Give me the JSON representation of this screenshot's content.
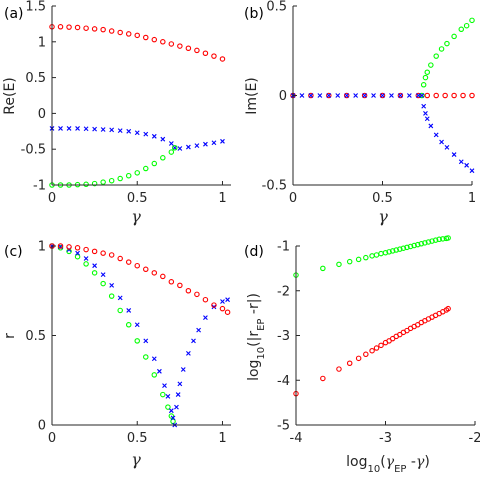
{
  "colors": {
    "red": "#ff0000",
    "green": "#00ff00",
    "blue": "#0000ff",
    "axis": "#262626"
  },
  "chart_data": [
    {
      "id": "a",
      "type": "scatter",
      "panel_label": "(a)",
      "xlabel": "γ",
      "ylabel": "Re(E)",
      "xlim": [
        0,
        1.05
      ],
      "ylim": [
        -1,
        1.5
      ],
      "xticks": [
        0,
        0.5,
        1
      ],
      "xtick_labels": [
        "0",
        "0.5",
        "1"
      ],
      "yticks": [
        -1,
        -0.5,
        0,
        0.5,
        1,
        1.5
      ],
      "ytick_labels": [
        "-1",
        "-0.5",
        "0",
        "0.5",
        "1",
        "1.5"
      ],
      "series": [
        {
          "color": "red",
          "marker": "o",
          "x": [
            0,
            0.05,
            0.1,
            0.15,
            0.2,
            0.25,
            0.3,
            0.35,
            0.4,
            0.45,
            0.5,
            0.55,
            0.6,
            0.65,
            0.7,
            0.75,
            0.8,
            0.85,
            0.9,
            0.95,
            1.0
          ],
          "y": [
            1.21,
            1.21,
            1.205,
            1.2,
            1.19,
            1.18,
            1.17,
            1.15,
            1.13,
            1.11,
            1.09,
            1.06,
            1.03,
            1.0,
            0.97,
            0.94,
            0.91,
            0.88,
            0.84,
            0.8,
            0.76
          ]
        },
        {
          "color": "blue",
          "marker": "x",
          "x": [
            0,
            0.05,
            0.1,
            0.15,
            0.2,
            0.25,
            0.3,
            0.35,
            0.4,
            0.45,
            0.5,
            0.55,
            0.6,
            0.65,
            0.7,
            0.72,
            0.75,
            0.8,
            0.85,
            0.9,
            0.95,
            1.0
          ],
          "y": [
            -0.21,
            -0.21,
            -0.21,
            -0.21,
            -0.215,
            -0.22,
            -0.225,
            -0.23,
            -0.24,
            -0.25,
            -0.27,
            -0.29,
            -0.32,
            -0.36,
            -0.42,
            -0.48,
            -0.49,
            -0.47,
            -0.45,
            -0.43,
            -0.41,
            -0.39
          ]
        },
        {
          "color": "green",
          "marker": "o",
          "x": [
            0,
            0.05,
            0.1,
            0.15,
            0.2,
            0.25,
            0.3,
            0.35,
            0.4,
            0.45,
            0.5,
            0.55,
            0.6,
            0.65,
            0.7,
            0.72
          ],
          "y": [
            -1.0,
            -1.0,
            -1.0,
            -0.995,
            -0.99,
            -0.98,
            -0.96,
            -0.94,
            -0.91,
            -0.87,
            -0.83,
            -0.77,
            -0.7,
            -0.62,
            -0.54,
            -0.48
          ]
        }
      ]
    },
    {
      "id": "b",
      "type": "scatter",
      "panel_label": "(b)",
      "xlabel": "γ",
      "ylabel": "Im(E)",
      "xlim": [
        0,
        1.0
      ],
      "ylim": [
        -0.5,
        0.5
      ],
      "xticks": [
        0,
        0.5,
        1
      ],
      "xtick_labels": [
        "0",
        "0.5",
        "1"
      ],
      "yticks": [
        -0.5,
        0,
        0.5
      ],
      "ytick_labels": [
        "-0.5",
        "0",
        "0.5"
      ],
      "series": [
        {
          "color": "red",
          "marker": "o",
          "x": [
            0,
            0.1,
            0.2,
            0.3,
            0.4,
            0.5,
            0.6,
            0.7,
            0.75,
            0.8,
            0.85,
            0.9,
            0.95,
            1.0
          ],
          "y": [
            0,
            0,
            0,
            0,
            0,
            0,
            0,
            0,
            0,
            0,
            0,
            0,
            0,
            0
          ]
        },
        {
          "color": "green",
          "marker": "o",
          "x": [
            0.72,
            0.73,
            0.74,
            0.75,
            0.77,
            0.8,
            0.83,
            0.86,
            0.9,
            0.94,
            0.97,
            1.0
          ],
          "y": [
            0.0,
            0.06,
            0.1,
            0.13,
            0.17,
            0.22,
            0.26,
            0.29,
            0.33,
            0.37,
            0.39,
            0.42
          ]
        },
        {
          "color": "blue",
          "marker": "x",
          "x": [
            0,
            0.05,
            0.1,
            0.15,
            0.2,
            0.25,
            0.3,
            0.35,
            0.4,
            0.45,
            0.5,
            0.55,
            0.6,
            0.65,
            0.7,
            0.72,
            0.73,
            0.74,
            0.75,
            0.77,
            0.8,
            0.83,
            0.86,
            0.9,
            0.94,
            0.97,
            1.0
          ],
          "y": [
            0,
            0,
            0,
            0,
            0,
            0,
            0,
            0,
            0,
            0,
            0,
            0,
            0,
            0,
            0,
            0.0,
            -0.06,
            -0.1,
            -0.13,
            -0.17,
            -0.22,
            -0.26,
            -0.29,
            -0.33,
            -0.37,
            -0.39,
            -0.42
          ]
        }
      ]
    },
    {
      "id": "c",
      "type": "scatter",
      "panel_label": "(c)",
      "xlabel": "γ",
      "ylabel": "r",
      "xlim": [
        0,
        1.05
      ],
      "ylim": [
        0,
        1
      ],
      "xticks": [
        0,
        0.5,
        1
      ],
      "xtick_labels": [
        "0",
        "0.5",
        "1"
      ],
      "yticks": [
        0,
        0.5,
        1
      ],
      "ytick_labels": [
        "0",
        "0.5",
        "1"
      ],
      "series": [
        {
          "color": "green",
          "marker": "o",
          "x": [
            0,
            0.05,
            0.1,
            0.15,
            0.2,
            0.25,
            0.3,
            0.35,
            0.4,
            0.45,
            0.5,
            0.55,
            0.6,
            0.65,
            0.68,
            0.7,
            0.71
          ],
          "y": [
            1.0,
            0.99,
            0.97,
            0.94,
            0.9,
            0.85,
            0.79,
            0.72,
            0.64,
            0.56,
            0.47,
            0.38,
            0.28,
            0.17,
            0.1,
            0.05,
            0.02
          ]
        },
        {
          "color": "blue",
          "marker": "x",
          "x": [
            0,
            0.05,
            0.1,
            0.15,
            0.2,
            0.25,
            0.3,
            0.35,
            0.4,
            0.45,
            0.5,
            0.55,
            0.6,
            0.63,
            0.66,
            0.68,
            0.7,
            0.71,
            0.72,
            0.73,
            0.74,
            0.75,
            0.77,
            0.8,
            0.83,
            0.86,
            0.9,
            0.95,
            1.0,
            1.03
          ],
          "y": [
            1.0,
            0.995,
            0.98,
            0.96,
            0.93,
            0.89,
            0.84,
            0.78,
            0.71,
            0.64,
            0.56,
            0.47,
            0.37,
            0.3,
            0.22,
            0.16,
            0.08,
            0.04,
            0.0,
            0.1,
            0.17,
            0.23,
            0.31,
            0.4,
            0.47,
            0.53,
            0.6,
            0.66,
            0.69,
            0.7
          ]
        },
        {
          "color": "red",
          "marker": "o",
          "x": [
            0,
            0.05,
            0.1,
            0.15,
            0.2,
            0.25,
            0.3,
            0.35,
            0.4,
            0.45,
            0.5,
            0.55,
            0.6,
            0.65,
            0.7,
            0.75,
            0.8,
            0.85,
            0.9,
            0.95,
            1.0,
            1.03
          ],
          "y": [
            1.0,
            1.0,
            0.995,
            0.99,
            0.98,
            0.97,
            0.96,
            0.95,
            0.93,
            0.91,
            0.89,
            0.87,
            0.85,
            0.83,
            0.8,
            0.78,
            0.75,
            0.73,
            0.7,
            0.67,
            0.65,
            0.63
          ]
        }
      ]
    },
    {
      "id": "d",
      "type": "scatter",
      "panel_label": "(d)",
      "xlabel": "log10(γEP-γ)",
      "ylabel": "log10(|rEP-r|)",
      "xlim": [
        -4,
        -2
      ],
      "ylim": [
        -5,
        -1
      ],
      "xticks": [
        -4,
        -3,
        -2
      ],
      "xtick_labels": [
        "-4",
        "-3",
        "-2"
      ],
      "yticks": [
        -5,
        -4,
        -3,
        -2,
        -1
      ],
      "ytick_labels": [
        "-5",
        "-4",
        "-3",
        "-2",
        "-1"
      ],
      "series": [
        {
          "color": "green",
          "marker": "o",
          "x": [
            -4.0,
            -3.7,
            -3.52,
            -3.4,
            -3.3,
            -3.22,
            -3.15,
            -3.1,
            -3.05,
            -3.0,
            -2.96,
            -2.92,
            -2.88,
            -2.84,
            -2.8,
            -2.76,
            -2.72,
            -2.68,
            -2.64,
            -2.6,
            -2.56,
            -2.52,
            -2.48,
            -2.44,
            -2.4,
            -2.36,
            -2.32,
            -2.3
          ],
          "y": [
            -1.65,
            -1.5,
            -1.41,
            -1.35,
            -1.3,
            -1.26,
            -1.22,
            -1.2,
            -1.17,
            -1.15,
            -1.13,
            -1.11,
            -1.09,
            -1.07,
            -1.05,
            -1.03,
            -1.01,
            -0.99,
            -0.97,
            -0.95,
            -0.93,
            -0.91,
            -0.89,
            -0.87,
            -0.85,
            -0.84,
            -0.83,
            -0.82
          ]
        },
        {
          "color": "red",
          "marker": "o",
          "x": [
            -4.0,
            -3.7,
            -3.52,
            -3.4,
            -3.3,
            -3.22,
            -3.15,
            -3.1,
            -3.05,
            -3.0,
            -2.96,
            -2.92,
            -2.88,
            -2.84,
            -2.8,
            -2.76,
            -2.72,
            -2.68,
            -2.64,
            -2.6,
            -2.56,
            -2.52,
            -2.48,
            -2.44,
            -2.4,
            -2.36,
            -2.32,
            -2.3
          ],
          "y": [
            -4.3,
            -3.96,
            -3.75,
            -3.62,
            -3.51,
            -3.42,
            -3.34,
            -3.28,
            -3.22,
            -3.16,
            -3.12,
            -3.07,
            -3.02,
            -2.98,
            -2.93,
            -2.89,
            -2.84,
            -2.8,
            -2.76,
            -2.71,
            -2.67,
            -2.63,
            -2.59,
            -2.55,
            -2.51,
            -2.47,
            -2.43,
            -2.4
          ]
        }
      ]
    }
  ]
}
